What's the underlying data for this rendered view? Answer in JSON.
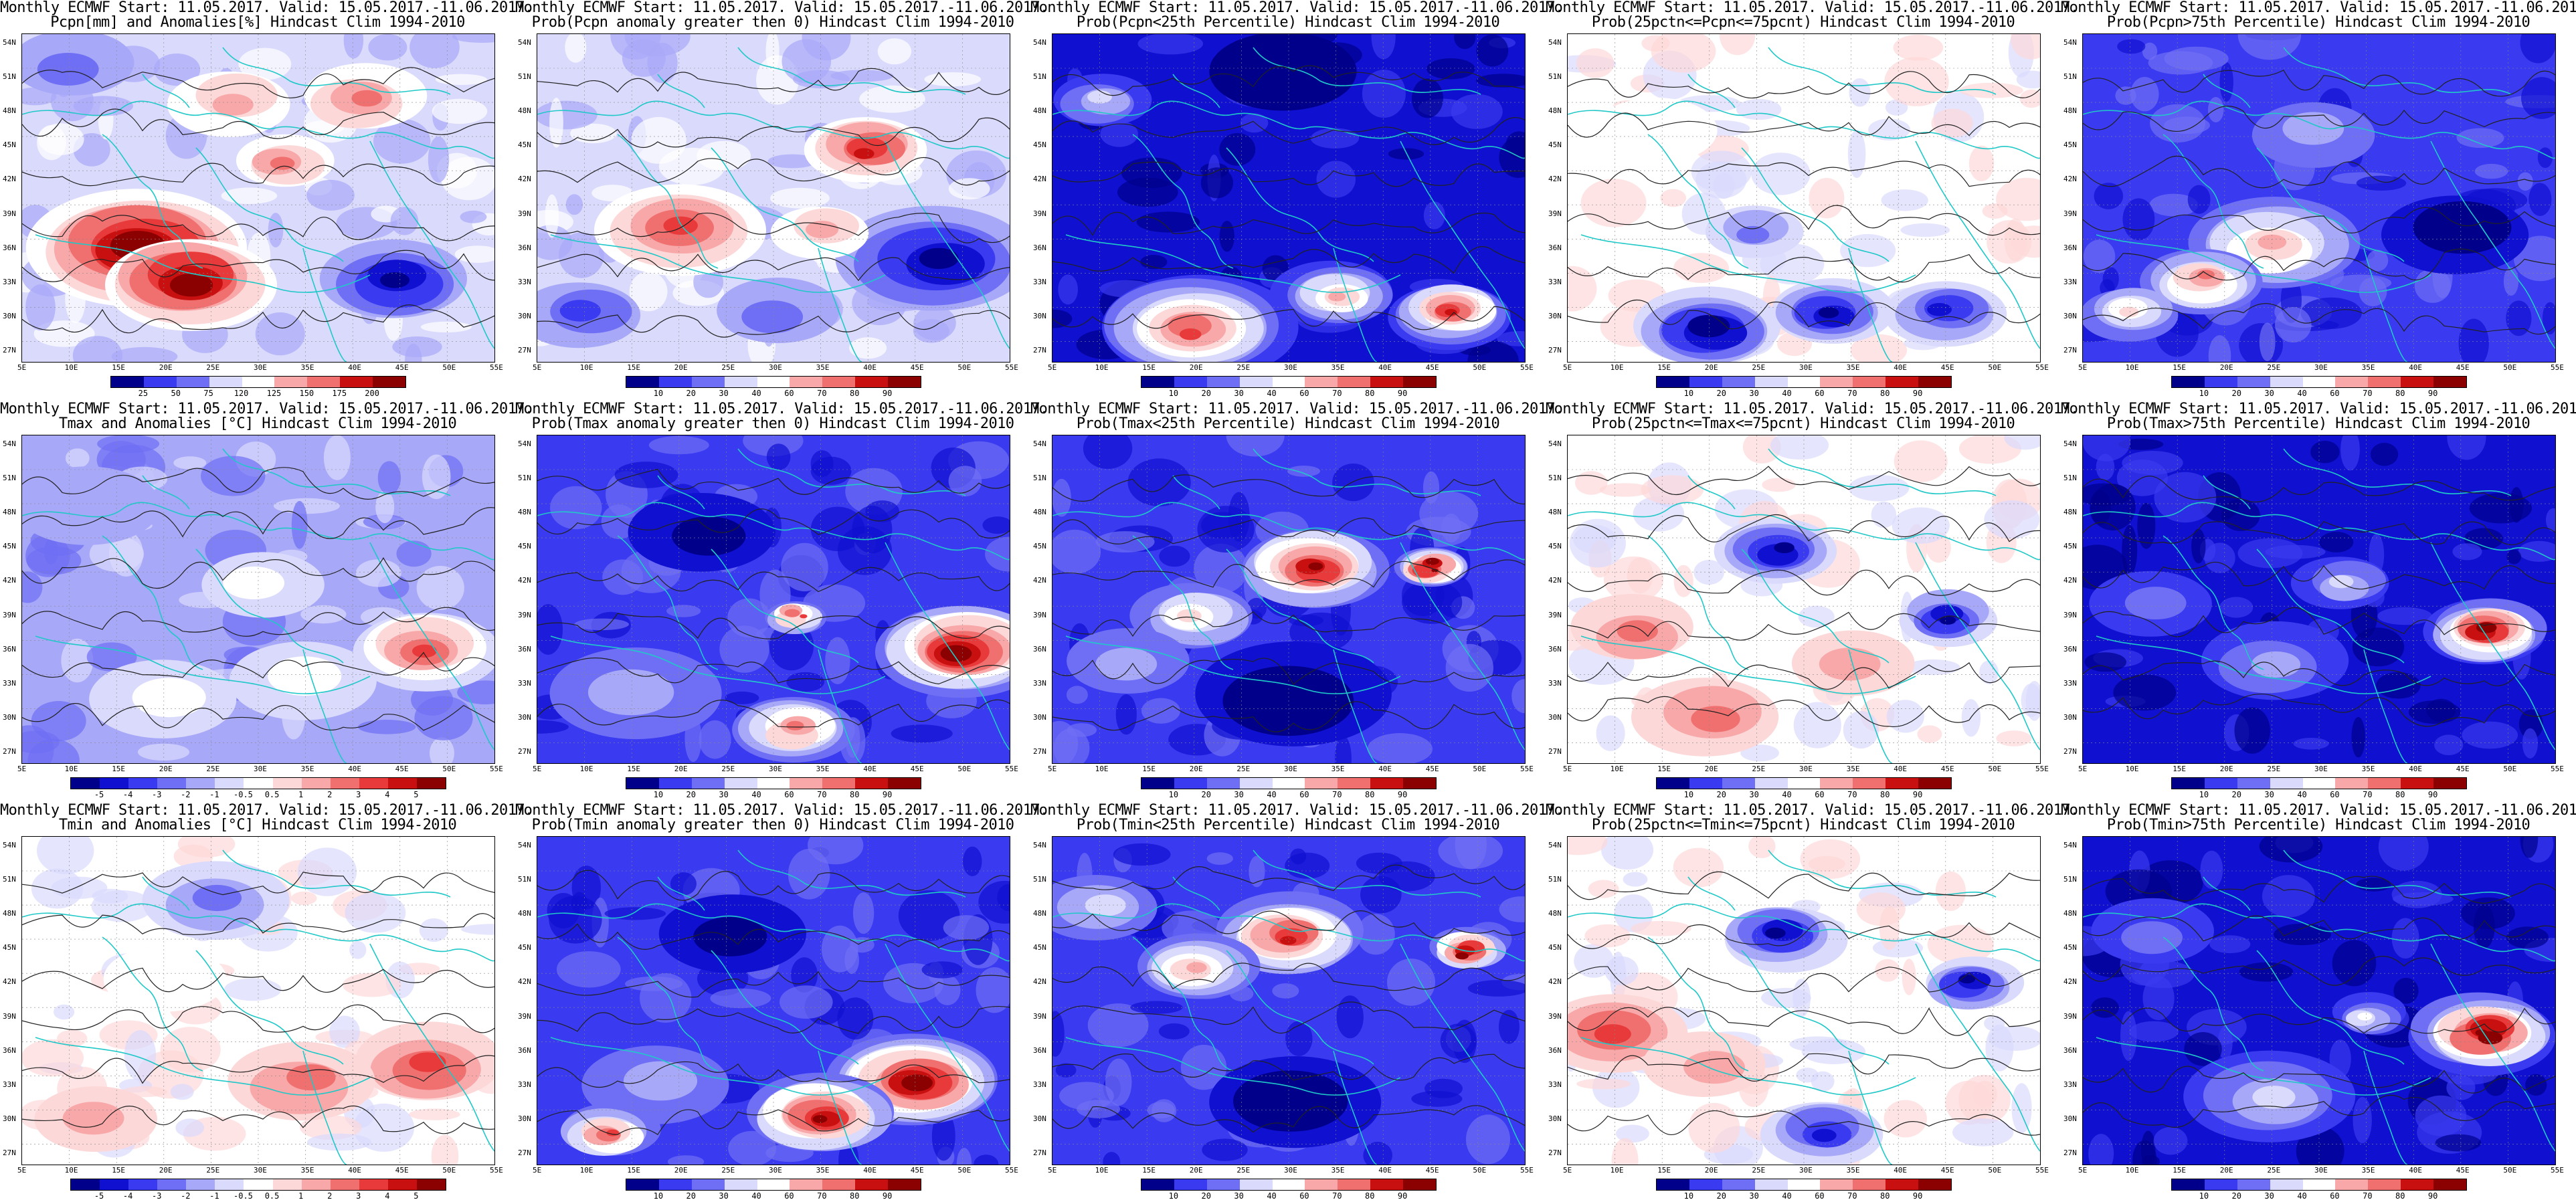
{
  "header_line": "Monthly ECMWF Start: 11.05.2017. Valid: 15.05.2017.-11.06.2017.",
  "lat_labels": [
    "54N",
    "51N",
    "48N",
    "45N",
    "42N",
    "39N",
    "36N",
    "33N",
    "30N",
    "27N"
  ],
  "lon_labels": [
    "5E",
    "10E",
    "15E",
    "20E",
    "25E",
    "30E",
    "35E",
    "40E",
    "45E",
    "50E",
    "55E"
  ],
  "colors": {
    "blue_ramp": [
      "#00008b",
      "#1010d0",
      "#3a3af0",
      "#6f6ff5",
      "#a8a8f8",
      "#dadafd",
      "#ffffff"
    ],
    "red_ramp": [
      "#ffffff",
      "#fdd8d8",
      "#f8a8a8",
      "#f07070",
      "#e83a3a",
      "#c81010",
      "#8b0000"
    ],
    "contour": "#222222",
    "coast": "#20c8c8"
  },
  "panels": [
    {
      "title": "Pcpn[mm] and Anomalies[%] Hindcast Clim 1994-2010",
      "colorbar": [
        "25",
        "50",
        "75",
        "120",
        "125",
        "150",
        "175",
        "200"
      ],
      "pattern": "pcpn_anom"
    },
    {
      "title": "Prob(Pcpn anomaly greater then 0) Hindcast Clim 1994-2010",
      "colorbar": [
        "10",
        "20",
        "30",
        "40",
        "60",
        "70",
        "80",
        "90"
      ],
      "pattern": "pcpn_prob"
    },
    {
      "title": "Prob(Pcpn<25th Percentile) Hindcast Clim 1994-2010",
      "colorbar": [
        "10",
        "20",
        "30",
        "40",
        "60",
        "70",
        "80",
        "90"
      ],
      "pattern": "pcpn_low"
    },
    {
      "title": "Prob(25pctn<=Pcpn<=75pcnt) Hindcast Clim 1994-2010",
      "colorbar": [
        "10",
        "20",
        "30",
        "40",
        "60",
        "70",
        "80",
        "90"
      ],
      "pattern": "pcpn_mid"
    },
    {
      "title": "Prob(Pcpn>75th Percentile) Hindcast Clim 1994-2010",
      "colorbar": [
        "10",
        "20",
        "30",
        "40",
        "60",
        "70",
        "80",
        "90"
      ],
      "pattern": "pcpn_high"
    },
    {
      "title": "Tmax and Anomalies [°C] Hindcast Clim 1994-2010",
      "colorbar": [
        "-5",
        "-4",
        "-3",
        "-2",
        "-1",
        "-0.5",
        "0.5",
        "1",
        "2",
        "3",
        "4",
        "5"
      ],
      "pattern": "tmax_anom"
    },
    {
      "title": "Prob(Tmax anomaly greater then 0) Hindcast Clim 1994-2010",
      "colorbar": [
        "10",
        "20",
        "30",
        "40",
        "60",
        "70",
        "80",
        "90"
      ],
      "pattern": "tmax_prob"
    },
    {
      "title": "Prob(Tmax<25th Percentile) Hindcast Clim 1994-2010",
      "colorbar": [
        "10",
        "20",
        "30",
        "40",
        "60",
        "70",
        "80",
        "90"
      ],
      "pattern": "tmax_low"
    },
    {
      "title": "Prob(25pctn<=Tmax<=75pcnt) Hindcast Clim 1994-2010",
      "colorbar": [
        "10",
        "20",
        "30",
        "40",
        "60",
        "70",
        "80",
        "90"
      ],
      "pattern": "tmax_mid"
    },
    {
      "title": "Prob(Tmax>75th Percentile) Hindcast Clim 1994-2010",
      "colorbar": [
        "10",
        "20",
        "30",
        "40",
        "60",
        "70",
        "80",
        "90"
      ],
      "pattern": "tmax_high"
    },
    {
      "title": "Tmin and Anomalies [°C] Hindcast Clim 1994-2010",
      "colorbar": [
        "-5",
        "-4",
        "-3",
        "-2",
        "-1",
        "-0.5",
        "0.5",
        "1",
        "2",
        "3",
        "4",
        "5"
      ],
      "pattern": "tmin_anom"
    },
    {
      "title": "Prob(Tmin anomaly greater then 0) Hindcast Clim 1994-2010",
      "colorbar": [
        "10",
        "20",
        "30",
        "40",
        "60",
        "70",
        "80",
        "90"
      ],
      "pattern": "tmin_prob"
    },
    {
      "title": "Prob(Tmin<25th Percentile) Hindcast Clim 1994-2010",
      "colorbar": [
        "10",
        "20",
        "30",
        "40",
        "60",
        "70",
        "80",
        "90"
      ],
      "pattern": "tmin_low"
    },
    {
      "title": "Prob(25pctn<=Tmin<=75pcnt) Hindcast Clim 1994-2010",
      "colorbar": [
        "10",
        "20",
        "30",
        "40",
        "60",
        "70",
        "80",
        "90"
      ],
      "pattern": "tmin_mid"
    },
    {
      "title": "Prob(Tmin>75th Percentile) Hindcast Clim 1994-2010",
      "colorbar": [
        "10",
        "20",
        "30",
        "40",
        "60",
        "70",
        "80",
        "90"
      ],
      "pattern": "tmin_high"
    }
  ]
}
